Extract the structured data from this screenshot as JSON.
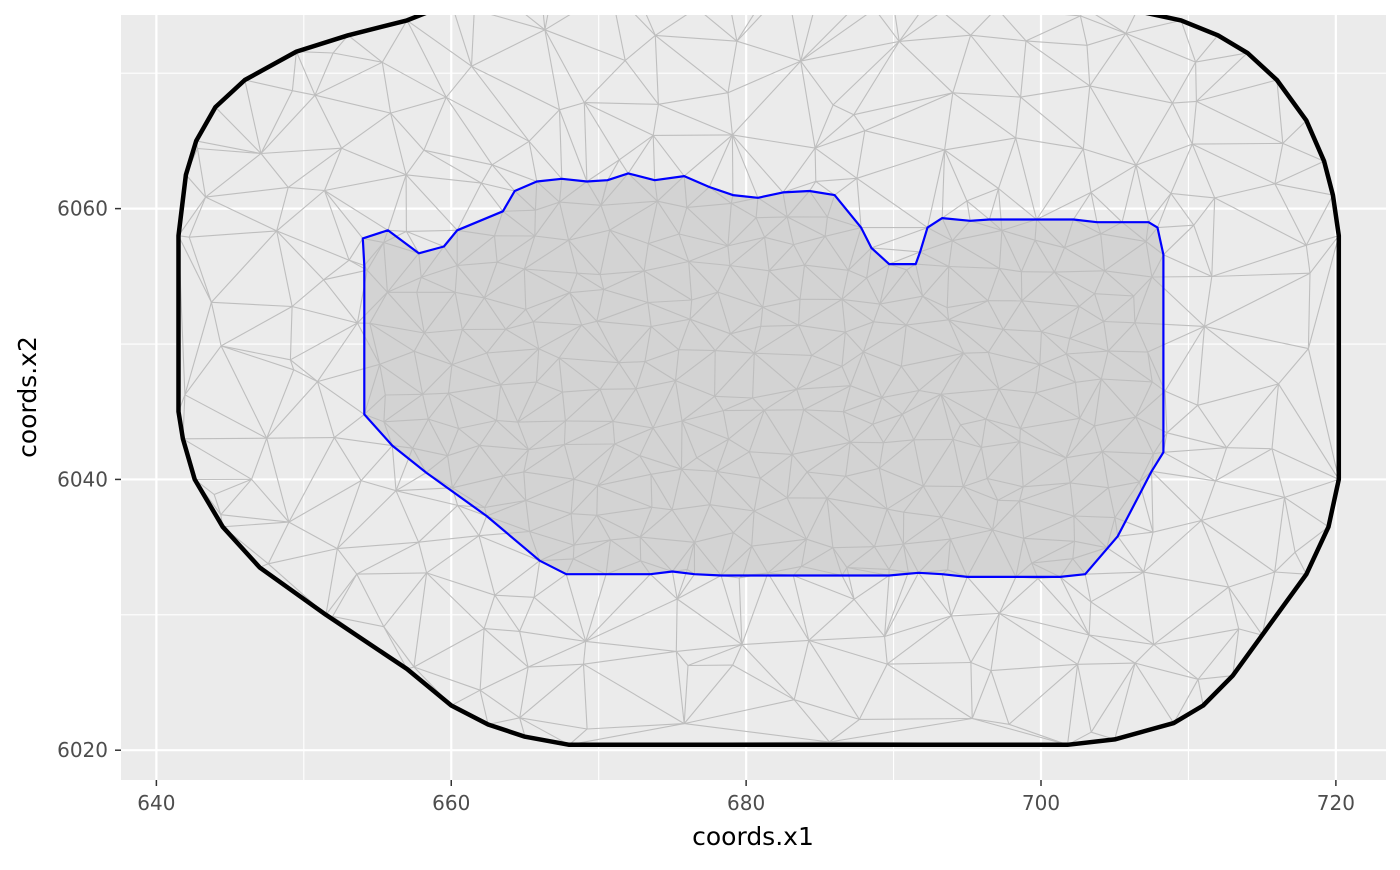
{
  "chart_data": {
    "type": "mesh",
    "title": "",
    "xlabel": "coords.x1",
    "ylabel": "coords.x2",
    "xlim": [
      637.6,
      723.4
    ],
    "ylim": [
      6017.8,
      6074.3
    ],
    "x_ticks": [
      "640",
      "660",
      "680",
      "700",
      "720"
    ],
    "x_tick_values": [
      640,
      660,
      680,
      700,
      720
    ],
    "y_ticks": [
      "6020",
      "6040",
      "6060"
    ],
    "y_tick_values": [
      6020,
      6040,
      6060
    ],
    "grid": true,
    "legend": "none",
    "colors": {
      "panel": "#ebebeb",
      "grid": "#ffffff",
      "mesh_edges": "#bebebe",
      "domain_fill": "#d3d3d3",
      "outer_boundary": "#000000",
      "inner_boundary": "#0000ff"
    },
    "outer_boundary": [
      [
        668.0,
        6020.4
      ],
      [
        701.8,
        6020.4
      ],
      [
        705.0,
        6020.8
      ],
      [
        709.0,
        6022.0
      ],
      [
        711.0,
        6023.3
      ],
      [
        713.0,
        6025.5
      ],
      [
        715.0,
        6028.5
      ],
      [
        718.0,
        6033.0
      ],
      [
        719.5,
        6036.5
      ],
      [
        720.2,
        6040.0
      ],
      [
        720.2,
        6058.0
      ],
      [
        719.8,
        6061.0
      ],
      [
        719.2,
        6063.5
      ],
      [
        718.0,
        6066.5
      ],
      [
        716.0,
        6069.5
      ],
      [
        714.0,
        6071.5
      ],
      [
        712.0,
        6072.8
      ],
      [
        709.5,
        6073.9
      ],
      [
        706.5,
        6074.6
      ],
      [
        703.0,
        6074.8
      ],
      [
        697.0,
        6074.8
      ],
      [
        692.0,
        6074.8
      ],
      [
        690.0,
        6075.0
      ],
      [
        688.0,
        6075.6
      ],
      [
        685.0,
        6076.3
      ],
      [
        682.0,
        6076.9
      ],
      [
        678.0,
        6077.3
      ],
      [
        672.0,
        6077.4
      ],
      [
        667.0,
        6076.9
      ],
      [
        663.0,
        6076.1
      ],
      [
        660.0,
        6075.2
      ],
      [
        657.0,
        6073.9
      ],
      [
        653.0,
        6072.8
      ],
      [
        649.5,
        6071.6
      ],
      [
        646.0,
        6069.5
      ],
      [
        644.0,
        6067.5
      ],
      [
        642.7,
        6065.0
      ],
      [
        642.0,
        6062.5
      ],
      [
        641.5,
        6058.0
      ],
      [
        641.5,
        6045.0
      ],
      [
        641.8,
        6043.0
      ],
      [
        642.6,
        6040.0
      ],
      [
        644.5,
        6036.5
      ],
      [
        647.0,
        6033.5
      ],
      [
        651.5,
        6030.0
      ],
      [
        657.0,
        6026.0
      ],
      [
        660.0,
        6023.3
      ],
      [
        662.5,
        6021.9
      ],
      [
        665.0,
        6021.0
      ]
    ],
    "inner_boundary": [
      [
        654.0,
        6057.8
      ],
      [
        655.7,
        6058.4
      ],
      [
        657.8,
        6056.7
      ],
      [
        659.5,
        6057.2
      ],
      [
        660.4,
        6058.4
      ],
      [
        663.5,
        6059.8
      ],
      [
        664.3,
        6061.3
      ],
      [
        665.8,
        6062.0
      ],
      [
        667.5,
        6062.2
      ],
      [
        669.2,
        6062.0
      ],
      [
        670.6,
        6062.1
      ],
      [
        672.0,
        6062.6
      ],
      [
        673.8,
        6062.1
      ],
      [
        675.8,
        6062.4
      ],
      [
        677.5,
        6061.6
      ],
      [
        679.1,
        6061.0
      ],
      [
        680.8,
        6060.8
      ],
      [
        682.5,
        6061.2
      ],
      [
        684.3,
        6061.3
      ],
      [
        686.0,
        6061.0
      ],
      [
        687.8,
        6058.6
      ],
      [
        688.5,
        6057.1
      ],
      [
        689.7,
        6055.9
      ],
      [
        691.5,
        6055.9
      ],
      [
        691.8,
        6056.8
      ],
      [
        692.3,
        6058.6
      ],
      [
        693.3,
        6059.3
      ],
      [
        695.2,
        6059.1
      ],
      [
        696.5,
        6059.2
      ],
      [
        699.7,
        6059.2
      ],
      [
        702.2,
        6059.2
      ],
      [
        703.8,
        6059.0
      ],
      [
        705.5,
        6059.0
      ],
      [
        707.3,
        6059.0
      ],
      [
        707.9,
        6058.6
      ],
      [
        708.3,
        6056.6
      ],
      [
        708.3,
        6042.0
      ],
      [
        707.5,
        6040.6
      ],
      [
        705.2,
        6035.8
      ],
      [
        703.0,
        6033.0
      ],
      [
        701.3,
        6032.8
      ],
      [
        698.3,
        6032.8
      ],
      [
        695.0,
        6032.8
      ],
      [
        693.3,
        6033.0
      ],
      [
        691.7,
        6033.1
      ],
      [
        689.7,
        6032.9
      ],
      [
        686.5,
        6032.9
      ],
      [
        683.2,
        6032.9
      ],
      [
        679.8,
        6032.9
      ],
      [
        678.3,
        6032.9
      ],
      [
        676.5,
        6033.0
      ],
      [
        675.0,
        6033.2
      ],
      [
        673.5,
        6033.0
      ],
      [
        670.5,
        6033.0
      ],
      [
        667.8,
        6033.0
      ],
      [
        666.0,
        6034.0
      ],
      [
        662.4,
        6037.3
      ],
      [
        658.3,
        6040.5
      ],
      [
        656.0,
        6042.5
      ],
      [
        654.1,
        6044.8
      ],
      [
        654.1,
        6055.8
      ]
    ],
    "mesh_note": "triangulated mesh of grey edges covering the region inside the outer boundary, denser inside the blue inner boundary"
  }
}
